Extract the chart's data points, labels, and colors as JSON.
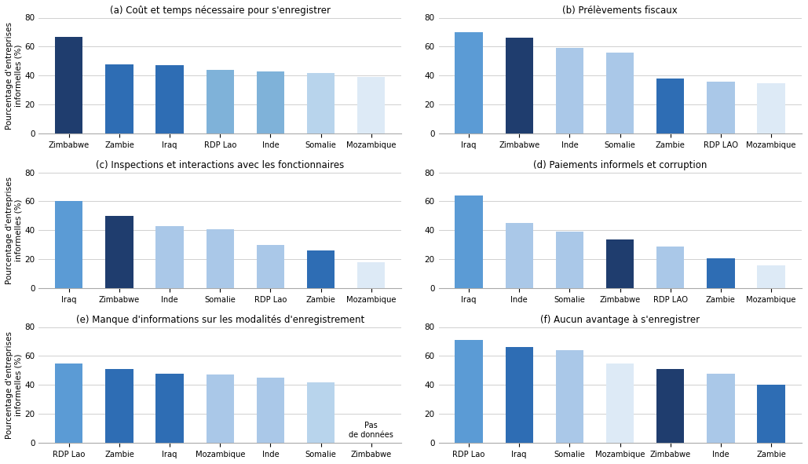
{
  "panels": [
    {
      "title": "(a) Coût et temps nécessaire pour s'enregistrer",
      "categories": [
        "Zimbabwe",
        "Zambie",
        "Iraq",
        "RDP Lao",
        "Inde",
        "Somalie",
        "Mozambique"
      ],
      "values": [
        67,
        48,
        47,
        44,
        43,
        42,
        39
      ],
      "colors": [
        "#1f3d6e",
        "#2e6db4",
        "#2e6db4",
        "#7fb2d9",
        "#7fb2d9",
        "#b8d4ec",
        "#ddeaf6"
      ]
    },
    {
      "title": "(b) Prélèvements fiscaux",
      "categories": [
        "Iraq",
        "Zimbabwe",
        "Inde",
        "Somalie",
        "Zambie",
        "RDP LAO",
        "Mozambique"
      ],
      "values": [
        70,
        66,
        59,
        56,
        38,
        36,
        35
      ],
      "colors": [
        "#5b9bd5",
        "#1f3d6e",
        "#aac8e8",
        "#aac8e8",
        "#2e6db4",
        "#aac8e8",
        "#ddeaf6"
      ]
    },
    {
      "title": "(c) Inspections et interactions avec les fonctionnaires",
      "categories": [
        "Iraq",
        "Zimbabwe",
        "Inde",
        "Somalie",
        "RDP Lao",
        "Zambie",
        "Mozambique"
      ],
      "values": [
        60,
        50,
        43,
        41,
        30,
        26,
        18
      ],
      "colors": [
        "#5b9bd5",
        "#1f3d6e",
        "#aac8e8",
        "#aac8e8",
        "#aac8e8",
        "#2e6db4",
        "#ddeaf6"
      ]
    },
    {
      "title": "(d) Paiements informels et corruption",
      "categories": [
        "Iraq",
        "Inde",
        "Somalie",
        "Zimbabwe",
        "RDP LAO",
        "Zambie",
        "Mozambique"
      ],
      "values": [
        64,
        45,
        39,
        34,
        29,
        21,
        16
      ],
      "colors": [
        "#5b9bd5",
        "#aac8e8",
        "#aac8e8",
        "#1f3d6e",
        "#aac8e8",
        "#2e6db4",
        "#ddeaf6"
      ]
    },
    {
      "title": "(e) Manque d'informations sur les modalités d'enregistrement",
      "categories": [
        "RDP Lao",
        "Zambie",
        "Iraq",
        "Mozambique",
        "Inde",
        "Somalie",
        "Zimbabwe"
      ],
      "values": [
        55,
        51,
        48,
        47,
        45,
        42,
        null
      ],
      "colors": [
        "#5b9bd5",
        "#2e6db4",
        "#2e6db4",
        "#aac8e8",
        "#aac8e8",
        "#b8d4ec",
        "#ffffff"
      ],
      "annotation": {
        "index": 6,
        "text": "Pas\nde données"
      }
    },
    {
      "title": "(f) Aucun avantage à s'enregistrer",
      "categories": [
        "RDP Lao",
        "Iraq",
        "Somalie",
        "Mozambique",
        "Zimbabwe",
        "Inde",
        "Zambie"
      ],
      "values": [
        71,
        66,
        64,
        55,
        51,
        48,
        40
      ],
      "colors": [
        "#5b9bd5",
        "#2e6db4",
        "#aac8e8",
        "#ddeaf6",
        "#1f3d6e",
        "#aac8e8",
        "#2e6db4"
      ]
    }
  ],
  "ylabel": "Pourcentage d'entreprises\ninformelles (%)",
  "ylim": [
    0,
    80
  ],
  "yticks": [
    0,
    20,
    40,
    60,
    80
  ],
  "background_color": "#ffffff",
  "grid_color": "#d0d0d0"
}
